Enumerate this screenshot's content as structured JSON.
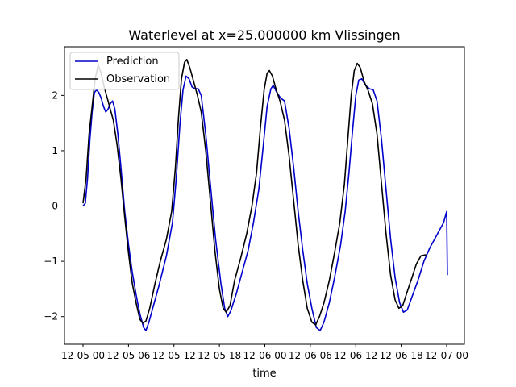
{
  "chart_data": {
    "type": "line",
    "title": "Waterlevel at x=25.000000 km Vlissingen",
    "xlabel": "time",
    "ylabel": "",
    "xlim": [
      "2012-05-04T21:07",
      "2012-07-07T02:53"
    ],
    "ylim": [
      -2.5,
      2.88
    ],
    "x_ticks": [
      {
        "label": "12-05 00",
        "hours": 0
      },
      {
        "label": "12-05 06",
        "hours": 6
      },
      {
        "label": "12-05 12",
        "hours": 12
      },
      {
        "label": "12-05 18",
        "hours": 18
      },
      {
        "label": "12-06 00",
        "hours": 24
      },
      {
        "label": "12-06 06",
        "hours": 30
      },
      {
        "label": "12-06 12",
        "hours": 36
      },
      {
        "label": "12-06 18",
        "hours": 42
      },
      {
        "label": "12-07 00",
        "hours": 48
      }
    ],
    "y_ticks": [
      {
        "label": "−2",
        "value": -2
      },
      {
        "label": "−1",
        "value": -1
      },
      {
        "label": "0",
        "value": 0
      },
      {
        "label": "1",
        "value": 1
      },
      {
        "label": "2",
        "value": 2
      }
    ],
    "grid": false,
    "legend_position": "top-left",
    "series": [
      {
        "name": "Prediction",
        "color": "#0000cc",
        "points": [
          [
            0,
            0.0
          ],
          [
            0.3,
            0.05
          ],
          [
            0.6,
            0.5
          ],
          [
            0.9,
            1.2
          ],
          [
            1.2,
            1.7
          ],
          [
            1.5,
            2.05
          ],
          [
            1.8,
            2.1
          ],
          [
            2.1,
            2.05
          ],
          [
            2.4,
            1.95
          ],
          [
            2.7,
            1.8
          ],
          [
            3.0,
            1.7
          ],
          [
            3.3,
            1.75
          ],
          [
            3.6,
            1.85
          ],
          [
            3.9,
            1.9
          ],
          [
            4.2,
            1.75
          ],
          [
            4.6,
            1.3
          ],
          [
            5.0,
            0.7
          ],
          [
            5.5,
            -0.1
          ],
          [
            6.0,
            -0.7
          ],
          [
            6.5,
            -1.2
          ],
          [
            7.0,
            -1.6
          ],
          [
            7.5,
            -1.95
          ],
          [
            8.0,
            -2.2
          ],
          [
            8.3,
            -2.25
          ],
          [
            8.7,
            -2.1
          ],
          [
            9.2,
            -1.85
          ],
          [
            10.0,
            -1.45
          ],
          [
            11.0,
            -0.9
          ],
          [
            11.8,
            -0.3
          ],
          [
            12.3,
            0.5
          ],
          [
            12.8,
            1.5
          ],
          [
            13.2,
            2.1
          ],
          [
            13.6,
            2.35
          ],
          [
            14.0,
            2.3
          ],
          [
            14.4,
            2.15
          ],
          [
            14.8,
            2.12
          ],
          [
            15.2,
            2.12
          ],
          [
            15.6,
            2.0
          ],
          [
            16.2,
            1.3
          ],
          [
            16.8,
            0.4
          ],
          [
            17.5,
            -0.6
          ],
          [
            18.2,
            -1.4
          ],
          [
            18.7,
            -1.85
          ],
          [
            19.1,
            -2.0
          ],
          [
            19.5,
            -1.9
          ],
          [
            20.2,
            -1.6
          ],
          [
            21.0,
            -1.2
          ],
          [
            21.8,
            -0.8
          ],
          [
            22.5,
            -0.3
          ],
          [
            23.2,
            0.3
          ],
          [
            23.8,
            1.1
          ],
          [
            24.3,
            1.8
          ],
          [
            24.8,
            2.12
          ],
          [
            25.1,
            2.18
          ],
          [
            25.6,
            2.05
          ],
          [
            26.1,
            1.95
          ],
          [
            26.6,
            1.9
          ],
          [
            27.2,
            1.4
          ],
          [
            27.8,
            0.7
          ],
          [
            28.4,
            -0.1
          ],
          [
            29.0,
            -0.8
          ],
          [
            29.6,
            -1.4
          ],
          [
            30.2,
            -1.85
          ],
          [
            30.8,
            -2.2
          ],
          [
            31.3,
            -2.25
          ],
          [
            31.8,
            -2.1
          ],
          [
            32.5,
            -1.75
          ],
          [
            33.2,
            -1.3
          ],
          [
            34.0,
            -0.7
          ],
          [
            34.6,
            -0.1
          ],
          [
            35.1,
            0.6
          ],
          [
            35.6,
            1.4
          ],
          [
            36.0,
            2.0
          ],
          [
            36.4,
            2.28
          ],
          [
            36.8,
            2.3
          ],
          [
            37.3,
            2.18
          ],
          [
            37.8,
            2.12
          ],
          [
            38.3,
            2.1
          ],
          [
            38.8,
            1.9
          ],
          [
            39.4,
            1.2
          ],
          [
            40.0,
            0.3
          ],
          [
            40.6,
            -0.6
          ],
          [
            41.2,
            -1.3
          ],
          [
            41.8,
            -1.75
          ],
          [
            42.3,
            -1.92
          ],
          [
            42.8,
            -1.88
          ],
          [
            43.4,
            -1.65
          ],
          [
            44.2,
            -1.35
          ],
          [
            45.0,
            -1.0
          ],
          [
            45.8,
            -0.75
          ],
          [
            46.4,
            -0.6
          ],
          [
            47.0,
            -0.45
          ],
          [
            47.6,
            -0.3
          ],
          [
            48.0,
            -0.1
          ],
          [
            48.1,
            -1.25
          ]
        ]
      },
      {
        "name": "Observation",
        "color": "#000000",
        "points": [
          [
            0,
            0.05
          ],
          [
            0.4,
            0.5
          ],
          [
            0.8,
            1.3
          ],
          [
            1.2,
            1.8
          ],
          [
            1.6,
            2.3
          ],
          [
            2.0,
            2.55
          ],
          [
            2.4,
            2.4
          ],
          [
            2.8,
            2.15
          ],
          [
            3.2,
            1.95
          ],
          [
            3.6,
            1.75
          ],
          [
            4.0,
            1.55
          ],
          [
            4.5,
            1.1
          ],
          [
            5.0,
            0.5
          ],
          [
            5.5,
            -0.2
          ],
          [
            6.0,
            -0.85
          ],
          [
            6.5,
            -1.4
          ],
          [
            7.0,
            -1.75
          ],
          [
            7.5,
            -2.05
          ],
          [
            7.9,
            -2.12
          ],
          [
            8.3,
            -2.08
          ],
          [
            8.8,
            -1.85
          ],
          [
            9.5,
            -1.4
          ],
          [
            10.2,
            -1.0
          ],
          [
            11.0,
            -0.6
          ],
          [
            11.7,
            -0.1
          ],
          [
            12.2,
            0.7
          ],
          [
            12.6,
            1.6
          ],
          [
            13.0,
            2.3
          ],
          [
            13.4,
            2.6
          ],
          [
            13.7,
            2.65
          ],
          [
            14.1,
            2.5
          ],
          [
            14.6,
            2.25
          ],
          [
            15.1,
            2.0
          ],
          [
            15.6,
            1.7
          ],
          [
            16.2,
            1.0
          ],
          [
            16.8,
            0.1
          ],
          [
            17.4,
            -0.8
          ],
          [
            18.0,
            -1.5
          ],
          [
            18.5,
            -1.85
          ],
          [
            18.9,
            -1.92
          ],
          [
            19.4,
            -1.8
          ],
          [
            20.0,
            -1.35
          ],
          [
            20.8,
            -0.95
          ],
          [
            21.6,
            -0.5
          ],
          [
            22.3,
            0.0
          ],
          [
            22.9,
            0.6
          ],
          [
            23.4,
            1.4
          ],
          [
            23.9,
            2.1
          ],
          [
            24.3,
            2.4
          ],
          [
            24.6,
            2.45
          ],
          [
            25.0,
            2.35
          ],
          [
            25.5,
            2.1
          ],
          [
            26.0,
            1.9
          ],
          [
            26.6,
            1.55
          ],
          [
            27.2,
            0.9
          ],
          [
            27.8,
            0.1
          ],
          [
            28.4,
            -0.7
          ],
          [
            29.0,
            -1.35
          ],
          [
            29.6,
            -1.85
          ],
          [
            30.2,
            -2.1
          ],
          [
            30.7,
            -2.15
          ],
          [
            31.2,
            -2.0
          ],
          [
            31.8,
            -1.75
          ],
          [
            32.5,
            -1.35
          ],
          [
            33.2,
            -0.85
          ],
          [
            33.9,
            -0.3
          ],
          [
            34.5,
            0.4
          ],
          [
            35.0,
            1.3
          ],
          [
            35.4,
            2.0
          ],
          [
            35.8,
            2.45
          ],
          [
            36.2,
            2.58
          ],
          [
            36.6,
            2.5
          ],
          [
            37.1,
            2.25
          ],
          [
            37.6,
            2.1
          ],
          [
            38.2,
            1.85
          ],
          [
            38.8,
            1.3
          ],
          [
            39.4,
            0.4
          ],
          [
            40.0,
            -0.5
          ],
          [
            40.6,
            -1.25
          ],
          [
            41.2,
            -1.7
          ],
          [
            41.7,
            -1.85
          ],
          [
            42.2,
            -1.8
          ],
          [
            42.8,
            -1.55
          ],
          [
            43.4,
            -1.3
          ],
          [
            44.0,
            -1.05
          ],
          [
            44.6,
            -0.9
          ],
          [
            45.3,
            -0.88
          ]
        ]
      }
    ]
  }
}
